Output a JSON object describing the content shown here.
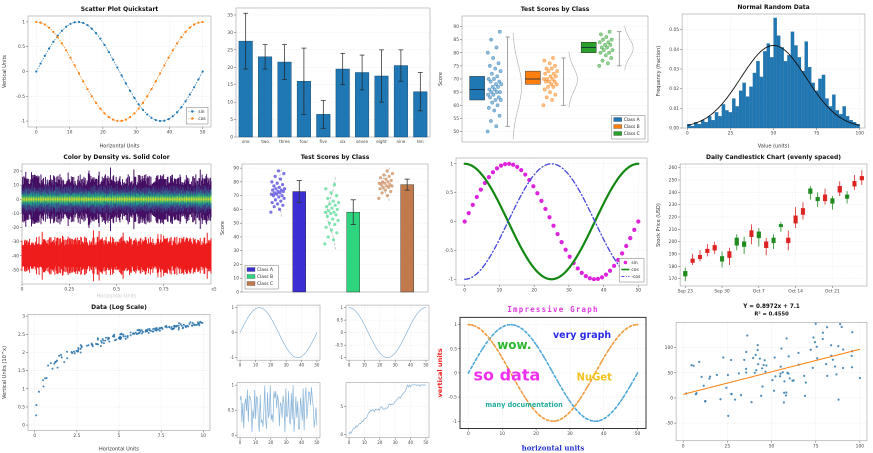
{
  "page": {
    "background": "#ffffff"
  },
  "chart_data": [
    {
      "id": "scatter-quickstart",
      "type": "trig-lines",
      "title": "Scatter Plot Quickstart",
      "xlabel": "Horizontal Units",
      "ylabel": "Vertical Units",
      "xlim": [
        -2.5,
        52.5
      ],
      "ylim": [
        -1.12,
        1.12
      ],
      "xticks": [
        0,
        10,
        20,
        30,
        40,
        50
      ],
      "yticks": [
        -1,
        -0.5,
        0,
        0.5,
        1
      ],
      "series": [
        {
          "name": "sin",
          "wave": "sin",
          "period": 50,
          "xmax": 50,
          "n": 40,
          "color": "#1f77b4",
          "dash": "1,1.8",
          "width": 0.7,
          "marker": 1.1
        },
        {
          "name": "cos",
          "wave": "cos",
          "period": 50,
          "xmax": 50,
          "n": 40,
          "color": "#ff7f0e",
          "dash": "1,1.8",
          "width": 0.7,
          "marker": 1.1
        }
      ],
      "legend": {
        "pos": "lower-right",
        "items": [
          {
            "label": "sin",
            "color": "#1f77b4",
            "kind": "marker-line"
          },
          {
            "label": "cos",
            "color": "#ff7f0e",
            "kind": "marker-line"
          }
        ]
      }
    },
    {
      "id": "bar-errors",
      "type": "bar",
      "categories": [
        "one",
        "two",
        "three",
        "four",
        "five",
        "six",
        "seven",
        "eight",
        "nine",
        "ten"
      ],
      "values": [
        27.5,
        23,
        21.5,
        16,
        6.5,
        19.5,
        18.5,
        17.5,
        20.5,
        13
      ],
      "errors": [
        8,
        3.5,
        5,
        9.5,
        4,
        4.5,
        5,
        7.5,
        4.5,
        5.5
      ],
      "bar_color": "#1f77b4",
      "edge_color": "#0d3d61",
      "ylim": [
        0,
        37
      ],
      "yticks": [
        0,
        5,
        10,
        15,
        20,
        25,
        30,
        35
      ]
    },
    {
      "id": "box-scores",
      "type": "box-scatter",
      "title": "Test Scores by Class",
      "ylabel": "Score",
      "ylim": [
        46,
        94
      ],
      "yticks": [
        50,
        55,
        60,
        65,
        70,
        75,
        80,
        85,
        90
      ],
      "classes": [
        {
          "label": "Class A",
          "color": "#1f77b4",
          "box": {
            "lo": 52,
            "q1": 62,
            "med": 66,
            "q3": 71,
            "hi": 86
          },
          "points": [
            50,
            52,
            54,
            56,
            58,
            59,
            60,
            61,
            62,
            62,
            63,
            63,
            64,
            64,
            65,
            65,
            65,
            66,
            66,
            67,
            67,
            68,
            68,
            69,
            69,
            70,
            70,
            71,
            72,
            73,
            74,
            75,
            76,
            78,
            80,
            82,
            85,
            88
          ]
        },
        {
          "label": "Class B",
          "color": "#ff7f0e",
          "box": {
            "lo": 60,
            "q1": 68,
            "med": 70,
            "q3": 73,
            "hi": 78
          },
          "points": [
            60,
            62,
            63,
            64,
            65,
            66,
            67,
            67,
            68,
            68,
            69,
            69,
            69,
            70,
            70,
            70,
            71,
            71,
            72,
            72,
            73,
            73,
            74,
            74,
            75,
            76,
            77,
            78
          ]
        },
        {
          "label": "Class C",
          "color": "#2ca02c",
          "box": {
            "lo": 75,
            "q1": 80,
            "med": 82,
            "q3": 84,
            "hi": 88
          },
          "points": [
            75,
            76,
            77,
            78,
            79,
            80,
            80,
            81,
            81,
            82,
            82,
            83,
            83,
            84,
            84,
            85,
            85,
            86,
            87,
            88
          ]
        }
      ],
      "legend": {
        "pos": "lower-right",
        "items": [
          {
            "label": "Class A",
            "color": "#1f77b4",
            "kind": "rect"
          },
          {
            "label": "Class B",
            "color": "#ff7f0e",
            "kind": "rect"
          },
          {
            "label": "Class C",
            "color": "#2ca02c",
            "kind": "rect"
          }
        ]
      }
    },
    {
      "id": "normal-hist",
      "type": "histogram",
      "title": "Normal Random Data",
      "xlabel": "Value (units)",
      "ylabel": "Frequency (fraction)",
      "xlim": [
        -3,
        103
      ],
      "ylim": [
        0,
        0.058
      ],
      "xticks": [
        0,
        25,
        50,
        75,
        100
      ],
      "yticks": [
        0,
        0.01,
        0.02,
        0.03,
        0.04,
        0.05
      ],
      "ytick_decimals": 2,
      "bin_start": 0,
      "bin_width": 2,
      "bar_color": "#1f77b4",
      "edge_color": "#14557f",
      "heights": [
        0.002,
        0.001,
        0.003,
        0.002,
        0.004,
        0.003,
        0.006,
        0.004,
        0.008,
        0.006,
        0.012,
        0.009,
        0.008,
        0.015,
        0.011,
        0.019,
        0.023,
        0.016,
        0.021,
        0.028,
        0.034,
        0.026,
        0.039,
        0.043,
        0.036,
        0.056,
        0.047,
        0.041,
        0.034,
        0.037,
        0.049,
        0.042,
        0.036,
        0.029,
        0.044,
        0.031,
        0.023,
        0.019,
        0.025,
        0.027,
        0.015,
        0.011,
        0.017,
        0.009,
        0.007,
        0.011,
        0.006,
        0.004,
        0.003,
        0.002
      ],
      "curve": {
        "mean": 50,
        "sd": 19,
        "peak": 0.042,
        "color": "#111111"
      }
    },
    {
      "id": "density-color",
      "type": "noise-bands",
      "title": "Color by Density vs. Solid Color",
      "xlabel": "Horizontal Units",
      "xlabel_muted": true,
      "xlim": [
        0,
        1
      ],
      "ylim": [
        -60,
        25
      ],
      "xticks": [
        0,
        0.25,
        0.5,
        0.75
      ],
      "offset_text": "e5",
      "yticks": [
        -50,
        -40,
        -30,
        -20,
        -10,
        0,
        10,
        20
      ],
      "bands": [
        {
          "center": 0,
          "seed": 7,
          "layers": [
            {
              "color": "#440f63",
              "amp": 17
            },
            {
              "color": "#414487",
              "amp": 9.5
            },
            {
              "color": "#2a788e",
              "amp": 6
            },
            {
              "color": "#22a884",
              "amp": 4.2
            },
            {
              "color": "#7ad151",
              "amp": 2.4
            },
            {
              "color": "#c8e02e",
              "amp": 1
            }
          ]
        },
        {
          "center": -40,
          "seed": 13,
          "layers": [
            {
              "color": "#ee1c1c",
              "amp": 13
            }
          ]
        }
      ]
    },
    {
      "id": "bar-scores",
      "type": "bar-scatter",
      "title": "Test Scores by Class",
      "ylabel": "Score",
      "ylim": [
        0,
        93
      ],
      "yticks": [
        0,
        10,
        20,
        30,
        40,
        50,
        60,
        70,
        80,
        90
      ],
      "classes": [
        {
          "label": "Class A",
          "bar_color": "#3b2fd4",
          "dot_color": "#5a50e0",
          "value": 73,
          "err": 8,
          "points": [
            58,
            60,
            62,
            63,
            64,
            65,
            66,
            67,
            68,
            69,
            70,
            70,
            71,
            71,
            72,
            72,
            73,
            73,
            74,
            74,
            75,
            75,
            76,
            77,
            78,
            79,
            80,
            82,
            84,
            86,
            88
          ]
        },
        {
          "label": "Class B",
          "bar_color": "#2ed47e",
          "dot_color": "#5fdd9b",
          "value": 58,
          "err": 9,
          "points": [
            35,
            38,
            40,
            43,
            45,
            47,
            49,
            50,
            52,
            53,
            55,
            56,
            57,
            58,
            58,
            59,
            60,
            61,
            62,
            63,
            64,
            65,
            66,
            68,
            70,
            72,
            75,
            78
          ]
        },
        {
          "label": "Class C",
          "bar_color": "#c07a4b",
          "dot_color": "#cf9368",
          "value": 78,
          "err": 4,
          "points": [
            68,
            70,
            72,
            73,
            74,
            75,
            76,
            76,
            77,
            77,
            78,
            78,
            79,
            79,
            80,
            80,
            81,
            82,
            83,
            84,
            85,
            86,
            88
          ]
        }
      ],
      "legend": {
        "pos": "lower-left",
        "items": [
          {
            "label": "Class A",
            "color": "#3b2fd4",
            "kind": "rect"
          },
          {
            "label": "Class B",
            "color": "#2ed47e",
            "kind": "rect"
          },
          {
            "label": "Class C",
            "color": "#c07a4b",
            "kind": "rect"
          }
        ]
      }
    },
    {
      "id": "trig-trio",
      "type": "trig-lines",
      "xlim": [
        -2.5,
        52.5
      ],
      "ylim": [
        -1.1,
        1.1
      ],
      "xticks": [
        0,
        10,
        20,
        30,
        40,
        50
      ],
      "yticks": [
        -1,
        -0.5,
        0,
        0.5,
        1
      ],
      "series": [
        {
          "name": "sin",
          "wave": "sin",
          "period": 50,
          "xmax": 50,
          "n": 44,
          "color": "#dd22dd",
          "marker": 2.1
        },
        {
          "name": "cos",
          "wave": "cos",
          "period": 50,
          "xmax": 50,
          "n": 160,
          "color": "#128812",
          "width": 2.2
        },
        {
          "name": "-cos",
          "wave": "-cos",
          "period": 50,
          "xmax": 50,
          "n": 160,
          "color": "#4444dd",
          "width": 1.3,
          "dash": "5,2.5,1,2.5"
        }
      ],
      "legend": {
        "pos": "lower-right",
        "items": [
          {
            "label": "sin",
            "color": "#dd22dd",
            "kind": "marker"
          },
          {
            "label": "cos",
            "color": "#128812",
            "kind": "line"
          },
          {
            "label": "-cos",
            "color": "#4444dd",
            "kind": "dashdot"
          }
        ]
      }
    },
    {
      "id": "candles",
      "type": "candlestick",
      "title": "Daily Candlestick Chart (evenly spaced)",
      "ylabel": "Stock Price (USD)",
      "ylim": [
        164,
        263
      ],
      "yticks": [
        170,
        180,
        190,
        200,
        210,
        220,
        230,
        240,
        250,
        260
      ],
      "xtick_idx": [
        0,
        5,
        10,
        15,
        20
      ],
      "xtick_labels": [
        "Sep 23",
        "Sep 30",
        "Oct 7",
        "Oct 14",
        "Oct 21"
      ],
      "up_color": "#1f8b1f",
      "down_color": "#dd2222",
      "ohlc": [
        [
          172,
          179,
          168,
          176
        ],
        [
          186,
          190,
          181,
          183
        ],
        [
          189,
          193,
          184,
          186
        ],
        [
          194,
          198,
          188,
          191
        ],
        [
          197,
          200,
          190,
          193
        ],
        [
          184,
          192,
          179,
          188
        ],
        [
          192,
          195,
          181,
          187
        ],
        [
          197,
          206,
          193,
          203
        ],
        [
          196,
          204,
          190,
          200
        ],
        [
          209,
          214,
          198,
          204
        ],
        [
          203,
          211,
          196,
          208
        ],
        [
          200,
          203,
          189,
          195
        ],
        [
          199,
          206,
          194,
          203
        ],
        [
          212,
          216,
          208,
          214
        ],
        [
          203,
          209,
          193,
          199
        ],
        [
          221,
          228,
          211,
          215
        ],
        [
          227,
          232,
          218,
          222
        ],
        [
          239,
          245,
          234,
          243
        ],
        [
          233,
          240,
          228,
          236
        ],
        [
          238,
          243,
          230,
          233
        ],
        [
          231,
          237,
          226,
          235
        ],
        [
          245,
          249,
          237,
          240
        ],
        [
          235,
          241,
          231,
          238
        ],
        [
          249,
          254,
          242,
          245
        ],
        [
          253,
          258,
          246,
          250
        ]
      ]
    },
    {
      "id": "log-scatter",
      "type": "gen-scatter",
      "title": "Data (Log Scale)",
      "xlabel": "Horizontal Units",
      "ylabel": "Vertical Units (10^x)",
      "xlim": [
        -0.4,
        10.4
      ],
      "ylim": [
        -0.15,
        3.05
      ],
      "xticks": [
        0,
        2.5,
        5,
        7.5,
        10
      ],
      "yticks": [
        0,
        0.5,
        1,
        1.5,
        2,
        2.5,
        3
      ],
      "gen": {
        "n": 170,
        "seed": 21,
        "xmax": 10,
        "xpow": 0.8,
        "a": 1.25,
        "b": 0.1,
        "c": 1.55,
        "noise_base": 0.05,
        "noise_scale": 0.42,
        "noise_decay": 0.9,
        "color": "#2470a8",
        "size": 1.0
      }
    },
    {
      "id": "small-multiples",
      "type": "multiples",
      "subplots": [
        {
          "kind": "wave",
          "wave": "sin",
          "period": 50,
          "xmax": 50,
          "color": "#88b4d8",
          "xticks": [
            0,
            10,
            20,
            30,
            40,
            50
          ],
          "yticks": [
            -1,
            0,
            1
          ],
          "ylim": [
            -1.1,
            1.1
          ],
          "xlim": [
            -2,
            52
          ]
        },
        {
          "kind": "wave",
          "wave": "cos",
          "period": 50,
          "xmax": 50,
          "color": "#88b4d8",
          "xticks": [
            0,
            10,
            20,
            30,
            40,
            50
          ],
          "yticks": [
            -1,
            -0.5,
            0,
            0.5,
            1
          ],
          "ylim": [
            -1.1,
            1.1
          ],
          "xlim": [
            -2,
            52
          ]
        },
        {
          "kind": "noise",
          "seed": 5,
          "n": 85,
          "xmax": 50,
          "color": "#88b4d8",
          "xticks": [
            0,
            10,
            20,
            30,
            40,
            50
          ],
          "yticks": [
            0,
            0.5,
            1
          ],
          "ylim": [
            -0.05,
            1.05
          ],
          "xlim": [
            -2,
            52
          ]
        },
        {
          "kind": "walk",
          "seed": 9,
          "n": 80,
          "xmax": 50,
          "color": "#88b4d8",
          "xticks": [
            0,
            10,
            20,
            30,
            40,
            50
          ],
          "yticks": [
            0,
            5
          ],
          "ylim": [
            -0.6,
            9.2
          ],
          "xlim": [
            -2,
            52
          ]
        }
      ]
    },
    {
      "id": "impressive-graph",
      "type": "xkcd",
      "title": "Impressive Graph",
      "title_color": "#e23ae2",
      "xlabel": "horizontal units",
      "xlabel_color": "#2233cc",
      "ylabel": "vertical units",
      "ylabel_color": "#ee2222",
      "xlim": [
        -2.5,
        52.5
      ],
      "ylim": [
        -1.15,
        1.15
      ],
      "xticks": [
        0,
        10,
        20,
        30,
        40,
        50
      ],
      "yticks": [
        -1,
        -0.5,
        0,
        0.5,
        1
      ],
      "series": [
        {
          "name": "sin",
          "wave": "sin",
          "period": 50,
          "xmax": 50,
          "n": 48,
          "color": "#4fa8d8",
          "dash": "2.6,2.2",
          "width": 1.5,
          "marker": 0.9
        },
        {
          "name": "cos",
          "wave": "cos",
          "period": 50,
          "xmax": 50,
          "n": 48,
          "color": "#f09a3e",
          "dash": "2.6,2.2",
          "width": 1.5,
          "marker": 0.9
        }
      ],
      "annotations": [
        {
          "text": "wow.",
          "x": 8.5,
          "y": 0.5,
          "color": "#2eb82e",
          "size": 12
        },
        {
          "text": "very graph",
          "x": 25,
          "y": 0.72,
          "color": "#2a2ae6",
          "size": 9.5
        },
        {
          "text": "so data",
          "x": 1.5,
          "y": -0.16,
          "color": "#ee30ee",
          "size": 16
        },
        {
          "text": "NuGet",
          "x": 32,
          "y": -0.16,
          "color": "#f2c21c",
          "size": 10
        },
        {
          "text": "many documentation",
          "x": 5,
          "y": -0.7,
          "color": "#23ae9e",
          "size": 6.5
        }
      ]
    },
    {
      "id": "regression",
      "type": "regression",
      "title_line1": "Y = 0.8972x + 7.1",
      "title_line2": "R² = 0.4550",
      "xlim": [
        -4,
        104
      ],
      "ylim": [
        -85,
        150
      ],
      "xticks": [
        0,
        25,
        50,
        75,
        100
      ],
      "yticks": [
        -50,
        0,
        50,
        100
      ],
      "line_color": "#ff7f0e",
      "gen": {
        "n": 100,
        "seed": 33,
        "slope": 0.8972,
        "intercept": 7.1,
        "noise_sd": 33,
        "xmax": 100,
        "color": "#2470a8",
        "size": 1.1
      }
    }
  ]
}
